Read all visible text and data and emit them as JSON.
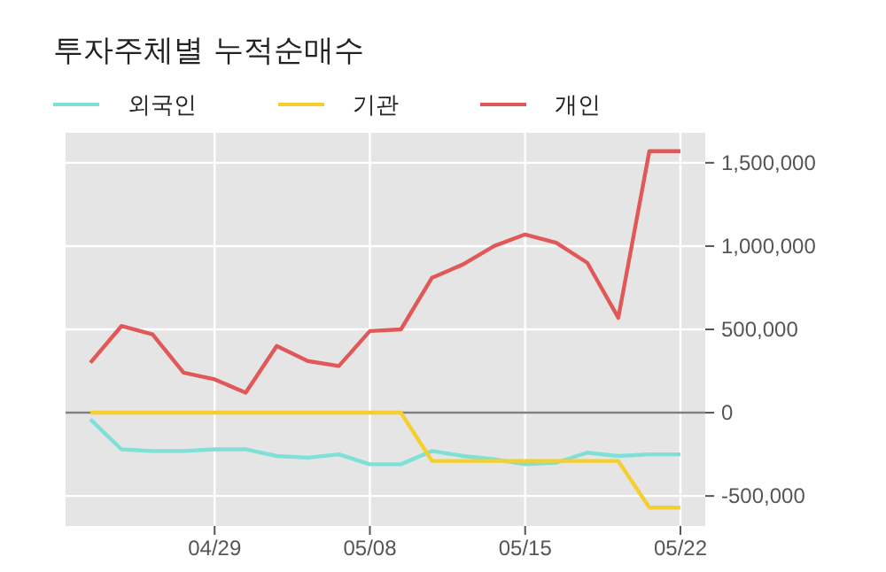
{
  "chart_data": {
    "type": "line",
    "title": "투자주체별 누적순매수",
    "categories": [
      null,
      null,
      null,
      null,
      "04/29",
      null,
      null,
      null,
      null,
      "05/08",
      null,
      null,
      null,
      null,
      "05/15",
      null,
      null,
      null,
      null,
      "05/22"
    ],
    "series": [
      {
        "name": "외국인",
        "color": "#7fe0d8",
        "values": [
          -40000,
          -220000,
          -230000,
          -230000,
          -220000,
          -220000,
          -260000,
          -270000,
          -250000,
          -310000,
          -310000,
          -230000,
          -260000,
          -280000,
          -310000,
          -300000,
          -240000,
          -260000,
          -250000,
          -250000
        ]
      },
      {
        "name": "기관",
        "color": "#f5cf30",
        "values": [
          0,
          0,
          0,
          0,
          0,
          0,
          0,
          0,
          0,
          0,
          0,
          -290000,
          -290000,
          -290000,
          -290000,
          -290000,
          -290000,
          -290000,
          -570000,
          -570000
        ]
      },
      {
        "name": "개인",
        "color": "#e05858",
        "values": [
          300000,
          520000,
          470000,
          240000,
          200000,
          120000,
          400000,
          310000,
          280000,
          490000,
          500000,
          810000,
          890000,
          1000000,
          1070000,
          1020000,
          900000,
          570000,
          1570000,
          1570000
        ]
      }
    ],
    "ylim": [
      -680000,
      1680000
    ],
    "yticks": [
      {
        "value": -500000,
        "label": "-500,000"
      },
      0,
      {
        "value": 500000,
        "label": "500,000"
      },
      {
        "value": 1000000,
        "label": "1,000,000"
      },
      {
        "value": 1500000,
        "label": "1,500,000"
      }
    ],
    "ref_lines": [
      {
        "axis": "y",
        "value": 0,
        "color": "#808080"
      }
    ],
    "grid": true,
    "legend": "top left"
  }
}
